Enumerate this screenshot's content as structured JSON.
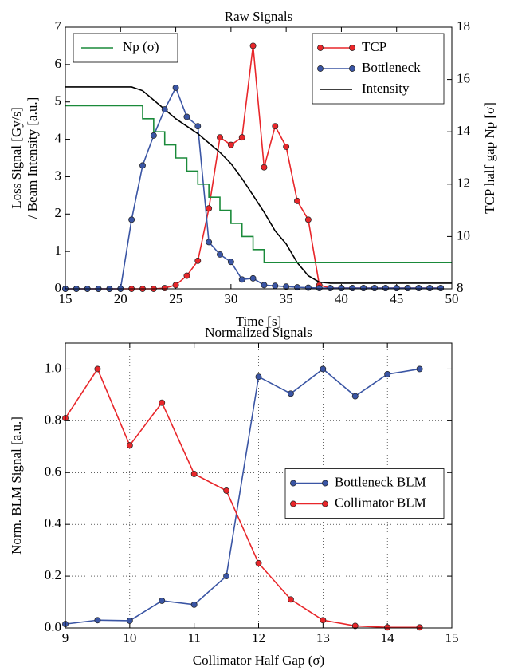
{
  "chart_data": [
    {
      "type": "line",
      "title": "Raw Signals",
      "xlabel": "Time [s]",
      "ylabel": [
        "Loss Signal [Gy/s]",
        "/ Beam Intensity [a.u.]"
      ],
      "y2label": "TCP half gap Np [σ]",
      "xlim": [
        15,
        50
      ],
      "xticks": [
        15,
        20,
        25,
        30,
        35,
        40,
        45,
        50
      ],
      "ylim": [
        0,
        7
      ],
      "yticks": [
        0,
        1,
        2,
        3,
        4,
        5,
        6,
        7
      ],
      "y2lim": [
        8,
        18
      ],
      "y2ticks": [
        8,
        10,
        12,
        14,
        16,
        18
      ],
      "grid": false,
      "legend": "upper right",
      "legend2": "upper left",
      "series": [
        {
          "name": "TCP",
          "color": "#e8262a",
          "marker": true,
          "x": [
            15,
            16,
            17,
            18,
            19,
            20,
            21,
            22,
            23,
            24,
            25,
            26,
            27,
            28,
            29,
            30,
            31,
            32,
            33,
            34,
            35,
            36,
            37,
            38,
            39,
            40,
            41,
            42,
            43,
            44,
            45,
            46,
            47,
            48,
            49
          ],
          "values": [
            0,
            0,
            0,
            0,
            0,
            0,
            0,
            0,
            0,
            0.02,
            0.1,
            0.35,
            0.75,
            2.15,
            4.05,
            3.85,
            4.05,
            6.5,
            3.25,
            4.35,
            3.8,
            2.35,
            1.85,
            0.1,
            0.02,
            0.02,
            0.02,
            0.02,
            0.02,
            0.02,
            0.02,
            0.02,
            0.02,
            0.02,
            0.02
          ]
        },
        {
          "name": "Bottleneck",
          "color": "#3a55a4",
          "marker": true,
          "x": [
            15,
            16,
            17,
            18,
            19,
            20,
            21,
            22,
            23,
            24,
            25,
            26,
            27,
            28,
            29,
            30,
            31,
            32,
            33,
            34,
            35,
            36,
            37,
            38,
            39,
            40,
            41,
            42,
            43,
            44,
            45,
            46,
            47,
            48,
            49
          ],
          "values": [
            0,
            0,
            0,
            0,
            0,
            0,
            1.85,
            3.3,
            4.1,
            4.8,
            5.38,
            4.6,
            4.35,
            1.25,
            0.92,
            0.72,
            0.25,
            0.28,
            0.1,
            0.08,
            0.06,
            0.04,
            0.03,
            0.02,
            0.02,
            0.02,
            0.02,
            0.02,
            0.02,
            0.02,
            0.02,
            0.02,
            0.02,
            0.02,
            0.02
          ]
        },
        {
          "name": "Intensity",
          "color": "#000000",
          "marker": false,
          "x": [
            15,
            20,
            21,
            22,
            23,
            24,
            25,
            26,
            27,
            28,
            29,
            30,
            31,
            32,
            33,
            34,
            35,
            36,
            37,
            38,
            39,
            50
          ],
          "values": [
            5.4,
            5.4,
            5.4,
            5.3,
            5.05,
            4.8,
            4.55,
            4.35,
            4.15,
            3.9,
            3.65,
            3.35,
            2.95,
            2.5,
            2.05,
            1.55,
            1.2,
            0.7,
            0.35,
            0.18,
            0.15,
            0.15
          ]
        },
        {
          "name": "Np (σ)",
          "color": "#1a8a3a",
          "marker": false,
          "axis": "y2",
          "drawstyle": "steps-post",
          "x": [
            15,
            22,
            23,
            24,
            25,
            26,
            27,
            28,
            29,
            30,
            31,
            32,
            33,
            50
          ],
          "values": [
            15,
            14.5,
            14,
            13.5,
            13,
            12.5,
            12,
            11.5,
            11,
            10.5,
            10,
            9.5,
            9,
            9
          ]
        }
      ]
    },
    {
      "type": "line",
      "title": "Normalized Signals",
      "xlabel": "Collimator Half Gap (σ)",
      "ylabel": [
        "Norm. BLM Signal [a.u.]"
      ],
      "xlim": [
        9,
        15
      ],
      "xticks": [
        9,
        10,
        11,
        12,
        13,
        14,
        15
      ],
      "ylim": [
        0,
        1.1
      ],
      "yticks": [
        {
          "value": 0,
          "label": "0.0"
        },
        0.2,
        0.4,
        0.6,
        0.8,
        {
          "value": 1,
          "label": "1.0"
        }
      ],
      "grid": true,
      "legend": "center right",
      "x": [
        9,
        9.5,
        10,
        10.5,
        11,
        11.5,
        12,
        12.5,
        13,
        13.5,
        14,
        14.5
      ],
      "series": [
        {
          "name": "Bottleneck BLM",
          "color": "#3a55a4",
          "marker": true,
          "values": [
            0.015,
            0.03,
            0.028,
            0.105,
            0.09,
            0.2,
            0.97,
            0.905,
            1.0,
            0.895,
            0.98,
            1.0
          ]
        },
        {
          "name": "Collimator BLM",
          "color": "#e8262a",
          "marker": true,
          "values": [
            0.81,
            1.0,
            0.705,
            0.87,
            0.595,
            0.53,
            0.25,
            0.11,
            0.03,
            0.008,
            0.002,
            0.002
          ]
        }
      ]
    }
  ]
}
